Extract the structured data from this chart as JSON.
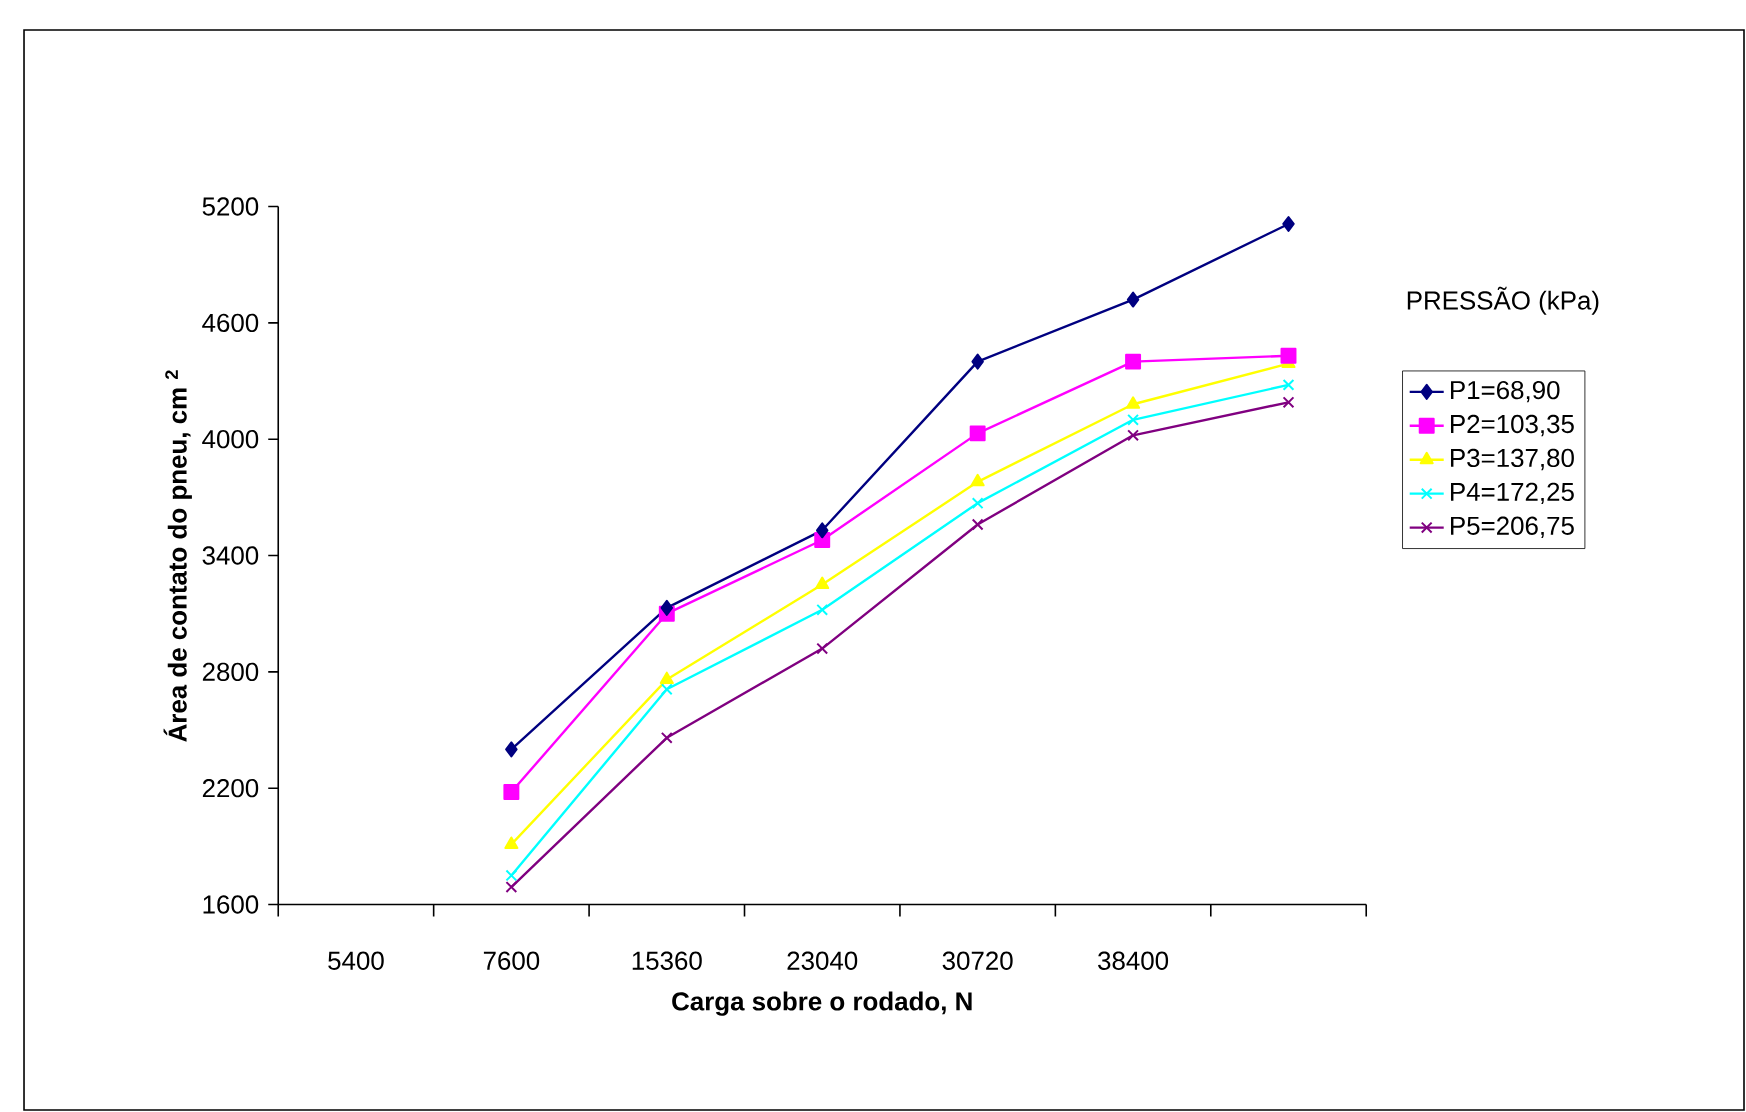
{
  "chart_data": {
    "type": "line",
    "xlabel": "Carga sobre o rodado, N",
    "ylabel": "Área de contato do pneu, cm $^{2}$",
    "legend_title": "PRESSÃO (kPa)",
    "legend": "right",
    "grid": false,
    "categories": [
      "5400",
      "7600",
      "15360",
      "23040",
      "30720",
      "38400",
      null
    ],
    "ylim": [
      1600,
      5200
    ],
    "yticks": [
      1600,
      2200,
      2800,
      3400,
      4000,
      4600,
      5200
    ],
    "series": [
      {
        "name": "P1=68,90",
        "color": "#000080",
        "marker": "diamond",
        "values": [
          null,
          2400,
          3130,
          3530,
          4400,
          4720,
          5110
        ]
      },
      {
        "name": "P2=103,35",
        "color": "#ff00ff",
        "marker": "square",
        "values": [
          null,
          2180,
          3100,
          3480,
          4030,
          4400,
          4430
        ]
      },
      {
        "name": "P3=137,80",
        "color": "#ffff00",
        "marker": "triangle",
        "values": [
          null,
          1910,
          2760,
          3250,
          3780,
          4180,
          4390
        ]
      },
      {
        "name": "P4=172,25",
        "color": "#00ffff",
        "marker": "cross",
        "values": [
          null,
          1750,
          2710,
          3120,
          3670,
          4100,
          4280
        ]
      },
      {
        "name": "P5=206,75",
        "color": "#800080",
        "marker": "cross",
        "values": [
          null,
          1690,
          2460,
          2920,
          3560,
          4020,
          4190
        ]
      }
    ]
  }
}
